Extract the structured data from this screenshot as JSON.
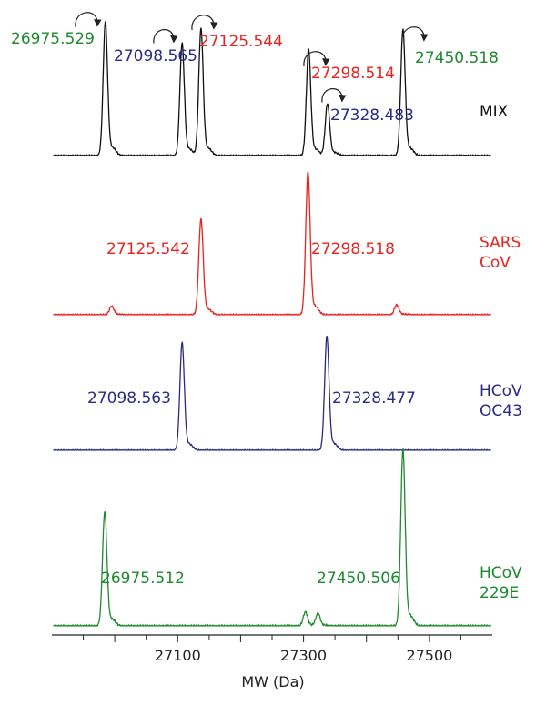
{
  "colors": {
    "mix": "#111111",
    "sars": "#e8221f",
    "oc43": "#2b2a85",
    "e229": "#1e8a2e",
    "axis": "#222222"
  },
  "chart_data": {
    "type": "line",
    "title": "",
    "xlabel": "MW (Da)",
    "ylabel": "",
    "xlim": [
      26900,
      27600
    ],
    "xticks": [
      27100,
      27300,
      27500
    ],
    "xtick_labels": [
      "27100",
      "27300",
      "27500"
    ],
    "grid": false,
    "panels": [
      {
        "id": "mix",
        "label": "MIX",
        "color_key": "mix",
        "peaks": [
          {
            "mw": 26985,
            "height": 0.98,
            "width": 3.5,
            "label": "26975.529",
            "label_color_key": "e229"
          },
          {
            "mw": 27107,
            "height": 0.82,
            "width": 3.5,
            "label": "27098.565",
            "label_color_key": "oc43"
          },
          {
            "mw": 27137,
            "height": 0.93,
            "width": 3.5,
            "label": "27125.544",
            "label_color_key": "sars"
          },
          {
            "mw": 27308,
            "height": 0.78,
            "width": 3.5,
            "label": "27298.514",
            "label_color_key": "sars"
          },
          {
            "mw": 27338,
            "height": 0.38,
            "width": 3.5,
            "label": "27328.483",
            "label_color_key": "oc43"
          },
          {
            "mw": 27458,
            "height": 0.92,
            "width": 3.5,
            "label": "27450.518",
            "label_color_key": "e229"
          }
        ]
      },
      {
        "id": "sars",
        "label": "SARS\nCoV",
        "label_lines": [
          "SARS",
          "CoV"
        ],
        "color_key": "sars",
        "peaks": [
          {
            "mw": 26995,
            "height": 0.06,
            "width": 3.5
          },
          {
            "mw": 27137,
            "height": 0.67,
            "width": 3.5,
            "label": "27125.542",
            "label_color_key": "sars"
          },
          {
            "mw": 27307,
            "height": 1.0,
            "width": 3.5,
            "label": "27298.518",
            "label_color_key": "sars"
          },
          {
            "mw": 27448,
            "height": 0.07,
            "width": 3.5
          }
        ]
      },
      {
        "id": "oc43",
        "label": "HCoV\nOC43",
        "label_lines": [
          "HCoV",
          "OC43"
        ],
        "color_key": "oc43",
        "peaks": [
          {
            "mw": 27107,
            "height": 0.85,
            "width": 3.5,
            "label": "27098.563",
            "label_color_key": "oc43"
          },
          {
            "mw": 27337,
            "height": 0.9,
            "width": 3.5,
            "label": "27328.477",
            "label_color_key": "oc43"
          }
        ]
      },
      {
        "id": "e229",
        "label": "HCoV\n229E",
        "label_lines": [
          "HCoV",
          "229E"
        ],
        "color_key": "e229",
        "peaks": [
          {
            "mw": 26984,
            "height": 0.65,
            "width": 3.5,
            "label": "26975.512",
            "label_color_key": "e229"
          },
          {
            "mw": 27303,
            "height": 0.08,
            "width": 3.5
          },
          {
            "mw": 27323,
            "height": 0.07,
            "width": 3.5
          },
          {
            "mw": 27458,
            "height": 1.0,
            "width": 3.5,
            "label": "27450.506",
            "label_color_key": "e229"
          }
        ]
      }
    ]
  }
}
